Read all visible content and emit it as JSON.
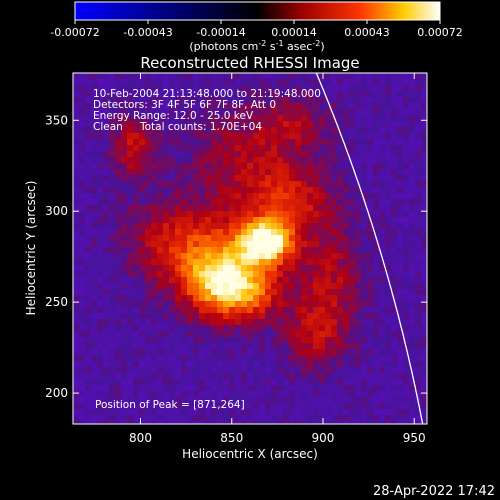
{
  "chart_data": {
    "type": "heatmap",
    "title": "Reconstructed RHESSI Image",
    "xlabel": "Heliocentric X (arcsec)",
    "ylabel": "Heliocentric Y (arcsec)",
    "xlim": [
      763,
      957
    ],
    "ylim": [
      183,
      376
    ],
    "x_ticks": [
      800,
      850,
      900,
      950
    ],
    "y_ticks": [
      200,
      250,
      300,
      350
    ],
    "colorbar": {
      "ticks": [
        "-0.00072",
        "-0.00043",
        "-0.00014",
        "0.00014",
        "0.00043",
        "0.00072"
      ],
      "min": -0.00072,
      "max": 0.00072,
      "unit_base": "(photons cm",
      "unit_exp1": "-2",
      "unit_mid1": " s",
      "unit_exp2": "-1",
      "unit_mid2": " asec",
      "unit_exp3": "-2",
      "unit_end": ")"
    },
    "annotations": {
      "time": "10-Feb-2004 21:13:48.000 to 21:19:48.000",
      "detectors": "Detectors: 3F 4F 5F 6F 7F 8F, Att 0",
      "energy": "Energy Range: 12.0 - 25.0 keV",
      "method": "Clean",
      "total_counts": "Total counts: 1.70E+04",
      "peak_text": "Position of Peak = [871,264]"
    },
    "peak": [
      871,
      264
    ],
    "limb_arc": {
      "center": [
        0,
        0
      ],
      "radius_arcsec": 972
    },
    "emission_sources": [
      {
        "x": 869,
        "y": 283,
        "sx": 10,
        "sy": 8,
        "amp": 1.0
      },
      {
        "x": 846,
        "y": 272,
        "sx": 22,
        "sy": 18,
        "amp": 0.55
      },
      {
        "x": 858,
        "y": 255,
        "sx": 12,
        "sy": 10,
        "amp": 0.5
      },
      {
        "x": 840,
        "y": 260,
        "sx": 12,
        "sy": 12,
        "amp": 0.45
      },
      {
        "x": 880,
        "y": 305,
        "sx": 16,
        "sy": 12,
        "amp": 0.4
      },
      {
        "x": 860,
        "y": 330,
        "sx": 24,
        "sy": 18,
        "amp": 0.3
      },
      {
        "x": 815,
        "y": 285,
        "sx": 18,
        "sy": 15,
        "amp": 0.28
      },
      {
        "x": 796,
        "y": 335,
        "sx": 8,
        "sy": 12,
        "amp": 0.38
      },
      {
        "x": 895,
        "y": 232,
        "sx": 12,
        "sy": 14,
        "amp": 0.3
      },
      {
        "x": 905,
        "y": 265,
        "sx": 12,
        "sy": 22,
        "amp": 0.3
      },
      {
        "x": 885,
        "y": 350,
        "sx": 14,
        "sy": 10,
        "amp": 0.22
      }
    ]
  },
  "footer": {
    "timestamp": "28-Apr-2022 17:42"
  }
}
